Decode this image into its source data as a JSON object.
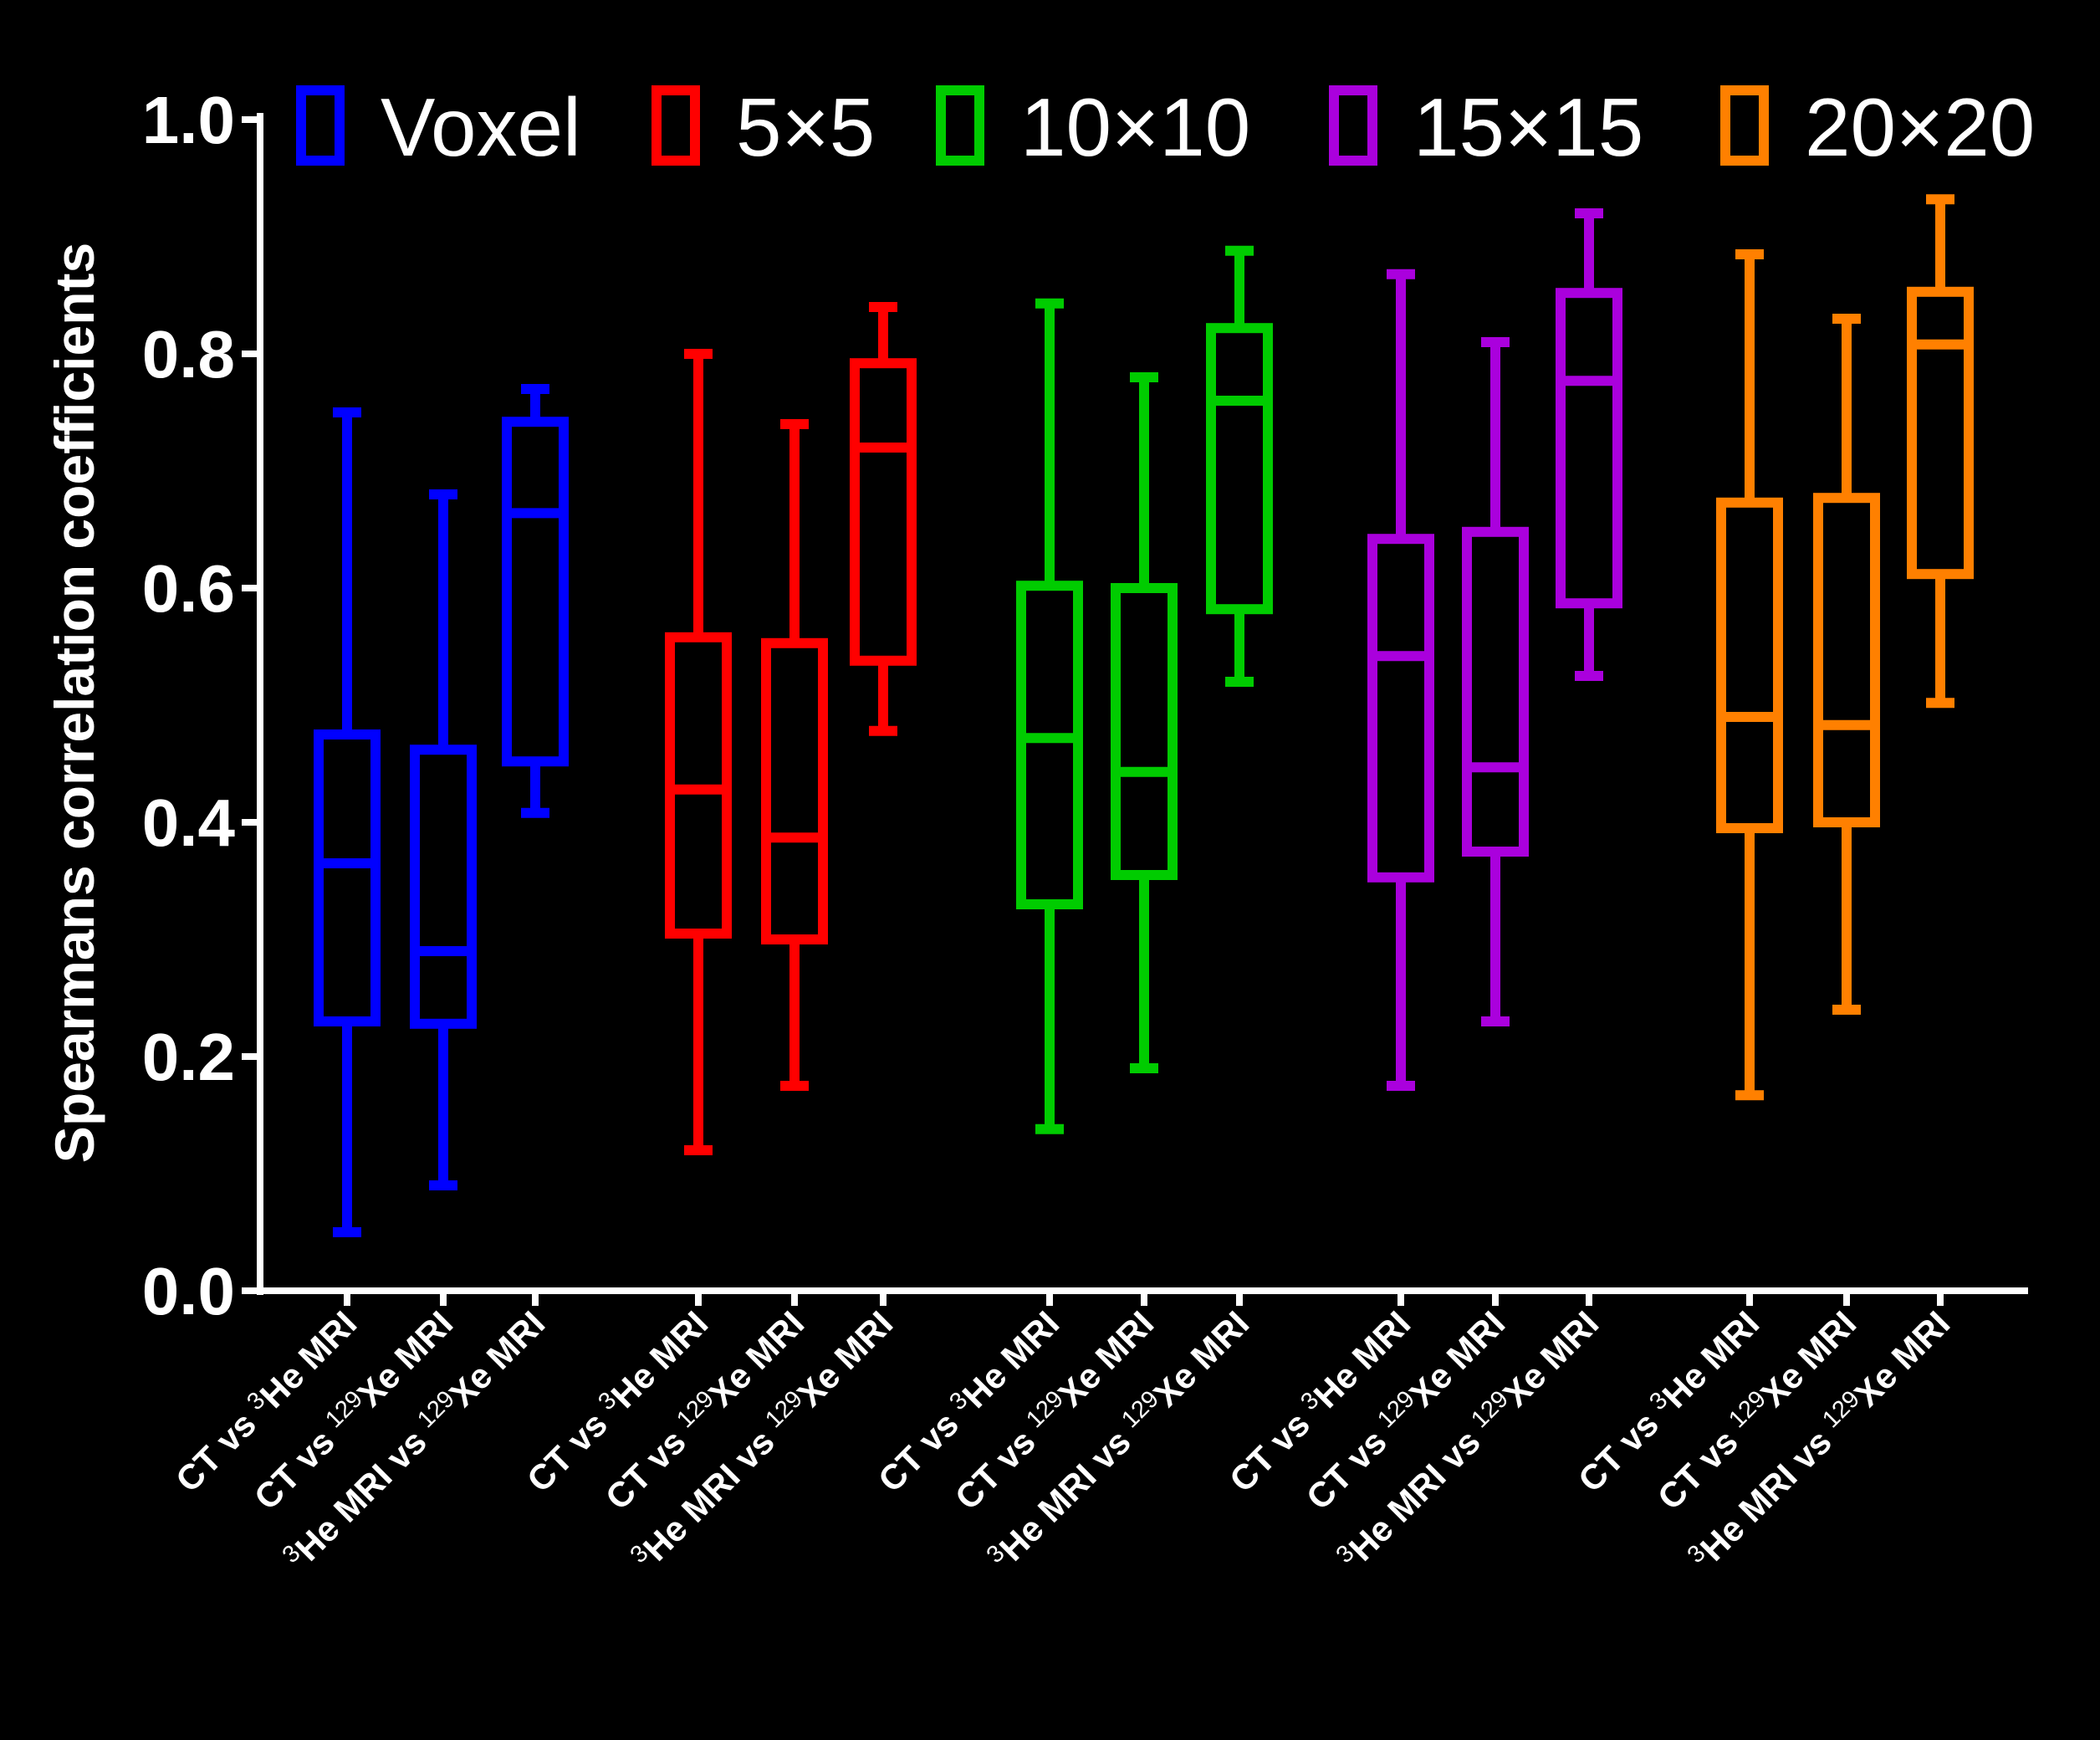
{
  "chart_data": {
    "type": "boxplot",
    "ylabel": "Spearmans correlation coefficients",
    "ylim": [
      0,
      1.0
    ],
    "yticks": [
      "0.0",
      "0.2",
      "0.4",
      "0.6",
      "0.8",
      "1.0"
    ],
    "legend_position": "top",
    "comparisons": [
      {
        "pre": "CT vs ",
        "sup": "3",
        "post": "He MRI"
      },
      {
        "pre": "CT vs ",
        "sup": "129",
        "post": "Xe MRI"
      },
      {
        "pre": "",
        "sup": "3",
        "post": "He MRI vs ",
        "sup2": "129",
        "post2": "Xe MRI"
      }
    ],
    "series": [
      {
        "name": "Voxel",
        "color": "#0000ff",
        "boxes": [
          {
            "min": 0.05,
            "q1": 0.23,
            "median": 0.365,
            "q3": 0.475,
            "max": 0.75
          },
          {
            "min": 0.09,
            "q1": 0.228,
            "median": 0.29,
            "q3": 0.462,
            "max": 0.68
          },
          {
            "min": 0.408,
            "q1": 0.452,
            "median": 0.664,
            "q3": 0.742,
            "max": 0.77
          }
        ]
      },
      {
        "name": "5×5",
        "color": "#ff0000",
        "boxes": [
          {
            "min": 0.12,
            "q1": 0.305,
            "median": 0.428,
            "q3": 0.558,
            "max": 0.8
          },
          {
            "min": 0.175,
            "q1": 0.3,
            "median": 0.387,
            "q3": 0.553,
            "max": 0.74
          },
          {
            "min": 0.478,
            "q1": 0.538,
            "median": 0.72,
            "q3": 0.792,
            "max": 0.84
          }
        ]
      },
      {
        "name": "10×10",
        "color": "#00cc00",
        "boxes": [
          {
            "min": 0.138,
            "q1": 0.33,
            "median": 0.472,
            "q3": 0.602,
            "max": 0.843
          },
          {
            "min": 0.19,
            "q1": 0.355,
            "median": 0.443,
            "q3": 0.6,
            "max": 0.78
          },
          {
            "min": 0.52,
            "q1": 0.582,
            "median": 0.76,
            "q3": 0.822,
            "max": 0.888
          }
        ]
      },
      {
        "name": "15×15",
        "color": "#aa00dd",
        "boxes": [
          {
            "min": 0.175,
            "q1": 0.353,
            "median": 0.542,
            "q3": 0.642,
            "max": 0.868
          },
          {
            "min": 0.23,
            "q1": 0.375,
            "median": 0.447,
            "q3": 0.648,
            "max": 0.81
          },
          {
            "min": 0.525,
            "q1": 0.587,
            "median": 0.777,
            "q3": 0.852,
            "max": 0.92
          }
        ]
      },
      {
        "name": "20×20",
        "color": "#ff8000",
        "boxes": [
          {
            "min": 0.167,
            "q1": 0.395,
            "median": 0.49,
            "q3": 0.673,
            "max": 0.885
          },
          {
            "min": 0.24,
            "q1": 0.4,
            "median": 0.483,
            "q3": 0.677,
            "max": 0.83
          },
          {
            "min": 0.502,
            "q1": 0.612,
            "median": 0.808,
            "q3": 0.853,
            "max": 0.932
          }
        ]
      }
    ]
  }
}
